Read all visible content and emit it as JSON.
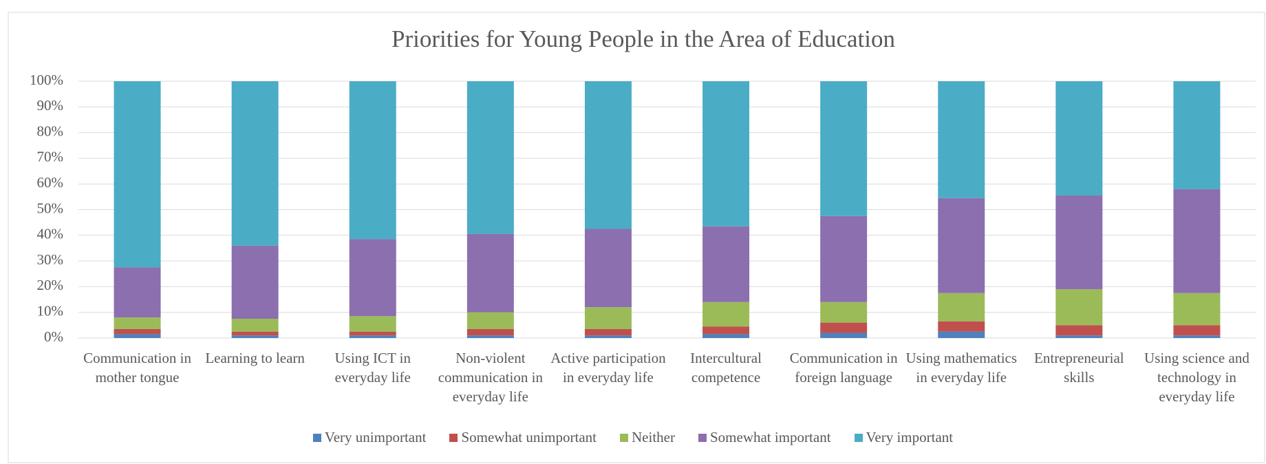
{
  "chart_data": {
    "type": "stacked_bar_percent",
    "title": "Priorities for Young People in the Area of Education",
    "categories": [
      "Communication in mother tongue",
      "Learning to learn",
      "Using ICT in everyday life",
      "Non-violent communication in everyday life",
      "Active participation in everyday life",
      "Intercultural competence",
      "Communication in foreign language",
      "Using mathematics in everyday life",
      "Entrepreneurial skills",
      "Using science and technology in everyday life"
    ],
    "series": [
      {
        "name": "Very unimportant",
        "color": "#4f81bd",
        "values": [
          1.5,
          1,
          1,
          1,
          1,
          1.5,
          2,
          2.5,
          1,
          1
        ]
      },
      {
        "name": "Somewhat unimportant",
        "color": "#c0504d",
        "values": [
          2,
          1.5,
          1.5,
          2.5,
          2.5,
          3,
          4,
          4,
          4,
          4
        ]
      },
      {
        "name": "Neither",
        "color": "#9bbb59",
        "values": [
          4.5,
          5,
          6,
          6.5,
          8.5,
          9.5,
          8,
          11,
          14,
          12.5
        ]
      },
      {
        "name": "Somewhat important",
        "color": "#8c6fae",
        "values": [
          19.5,
          28.5,
          30,
          30.5,
          30.5,
          29.5,
          33.5,
          37,
          36.5,
          40.5
        ]
      },
      {
        "name": "Very important",
        "color": "#4bacc6",
        "values": [
          72.5,
          64,
          61.5,
          59.5,
          57.5,
          56.5,
          52.5,
          45.5,
          44.5,
          42
        ]
      }
    ],
    "ylim": [
      0,
      100
    ],
    "yticks": [
      {
        "value": 0,
        "label": "0%"
      },
      {
        "value": 10,
        "label": "10%"
      },
      {
        "value": 20,
        "label": "20%"
      },
      {
        "value": 30,
        "label": "30%"
      },
      {
        "value": 40,
        "label": "40%"
      },
      {
        "value": 50,
        "label": "50%"
      },
      {
        "value": 60,
        "label": "60%"
      },
      {
        "value": 70,
        "label": "70%"
      },
      {
        "value": 80,
        "label": "80%"
      },
      {
        "value": 90,
        "label": "90%"
      },
      {
        "value": 100,
        "label": "100%"
      }
    ],
    "grid": true,
    "legend": "bottom"
  }
}
